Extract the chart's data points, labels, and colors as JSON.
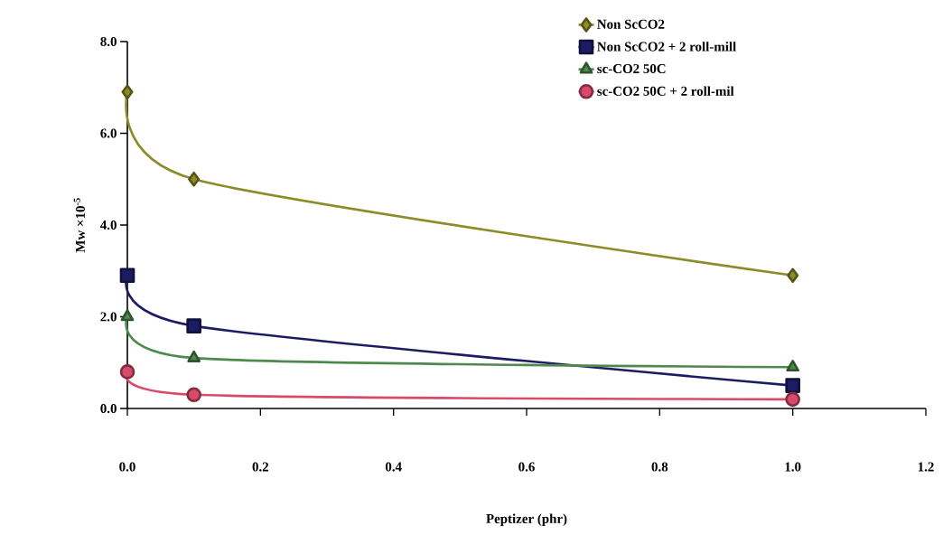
{
  "chart_data": {
    "type": "line",
    "xlabel": "Peptizer (phr)",
    "ylabel": "Mw ×10$^{-5}$",
    "x": [
      0.0,
      0.1,
      1.0
    ],
    "series": [
      {
        "name": "Non ScCO2",
        "color": "#8c8c28",
        "marker": "diamond",
        "values": [
          6.9,
          5.0,
          2.9
        ]
      },
      {
        "name": "Non ScCO2 + 2 roll-mill",
        "color": "#1c1c64",
        "marker": "square",
        "values": [
          2.9,
          1.8,
          0.5
        ]
      },
      {
        "name": "sc-CO2 50C",
        "color": "#4e8a4e",
        "marker": "triangle",
        "values": [
          2.0,
          1.1,
          0.9
        ]
      },
      {
        "name": "sc-CO2 50C + 2 roll-mil",
        "color": "#d84a6a",
        "marker": "circle",
        "values": [
          0.8,
          0.3,
          0.2
        ]
      }
    ],
    "xlim": [
      0,
      1.2
    ],
    "xticks": [
      {
        "value": 0,
        "label": "0.0"
      },
      0.2,
      0.4,
      0.6,
      0.8,
      {
        "value": 1,
        "label": "1.0"
      },
      1.2
    ],
    "ylim": [
      0,
      8
    ],
    "yticks": [
      {
        "value": 0,
        "label": "0.0"
      },
      {
        "value": 2,
        "label": "2.0"
      },
      {
        "value": 4,
        "label": "4.0"
      },
      {
        "value": 6,
        "label": "6.0"
      },
      {
        "value": 8,
        "label": "8.0"
      }
    ],
    "grid": false,
    "legend": "top right",
    "line_style": "solid"
  }
}
